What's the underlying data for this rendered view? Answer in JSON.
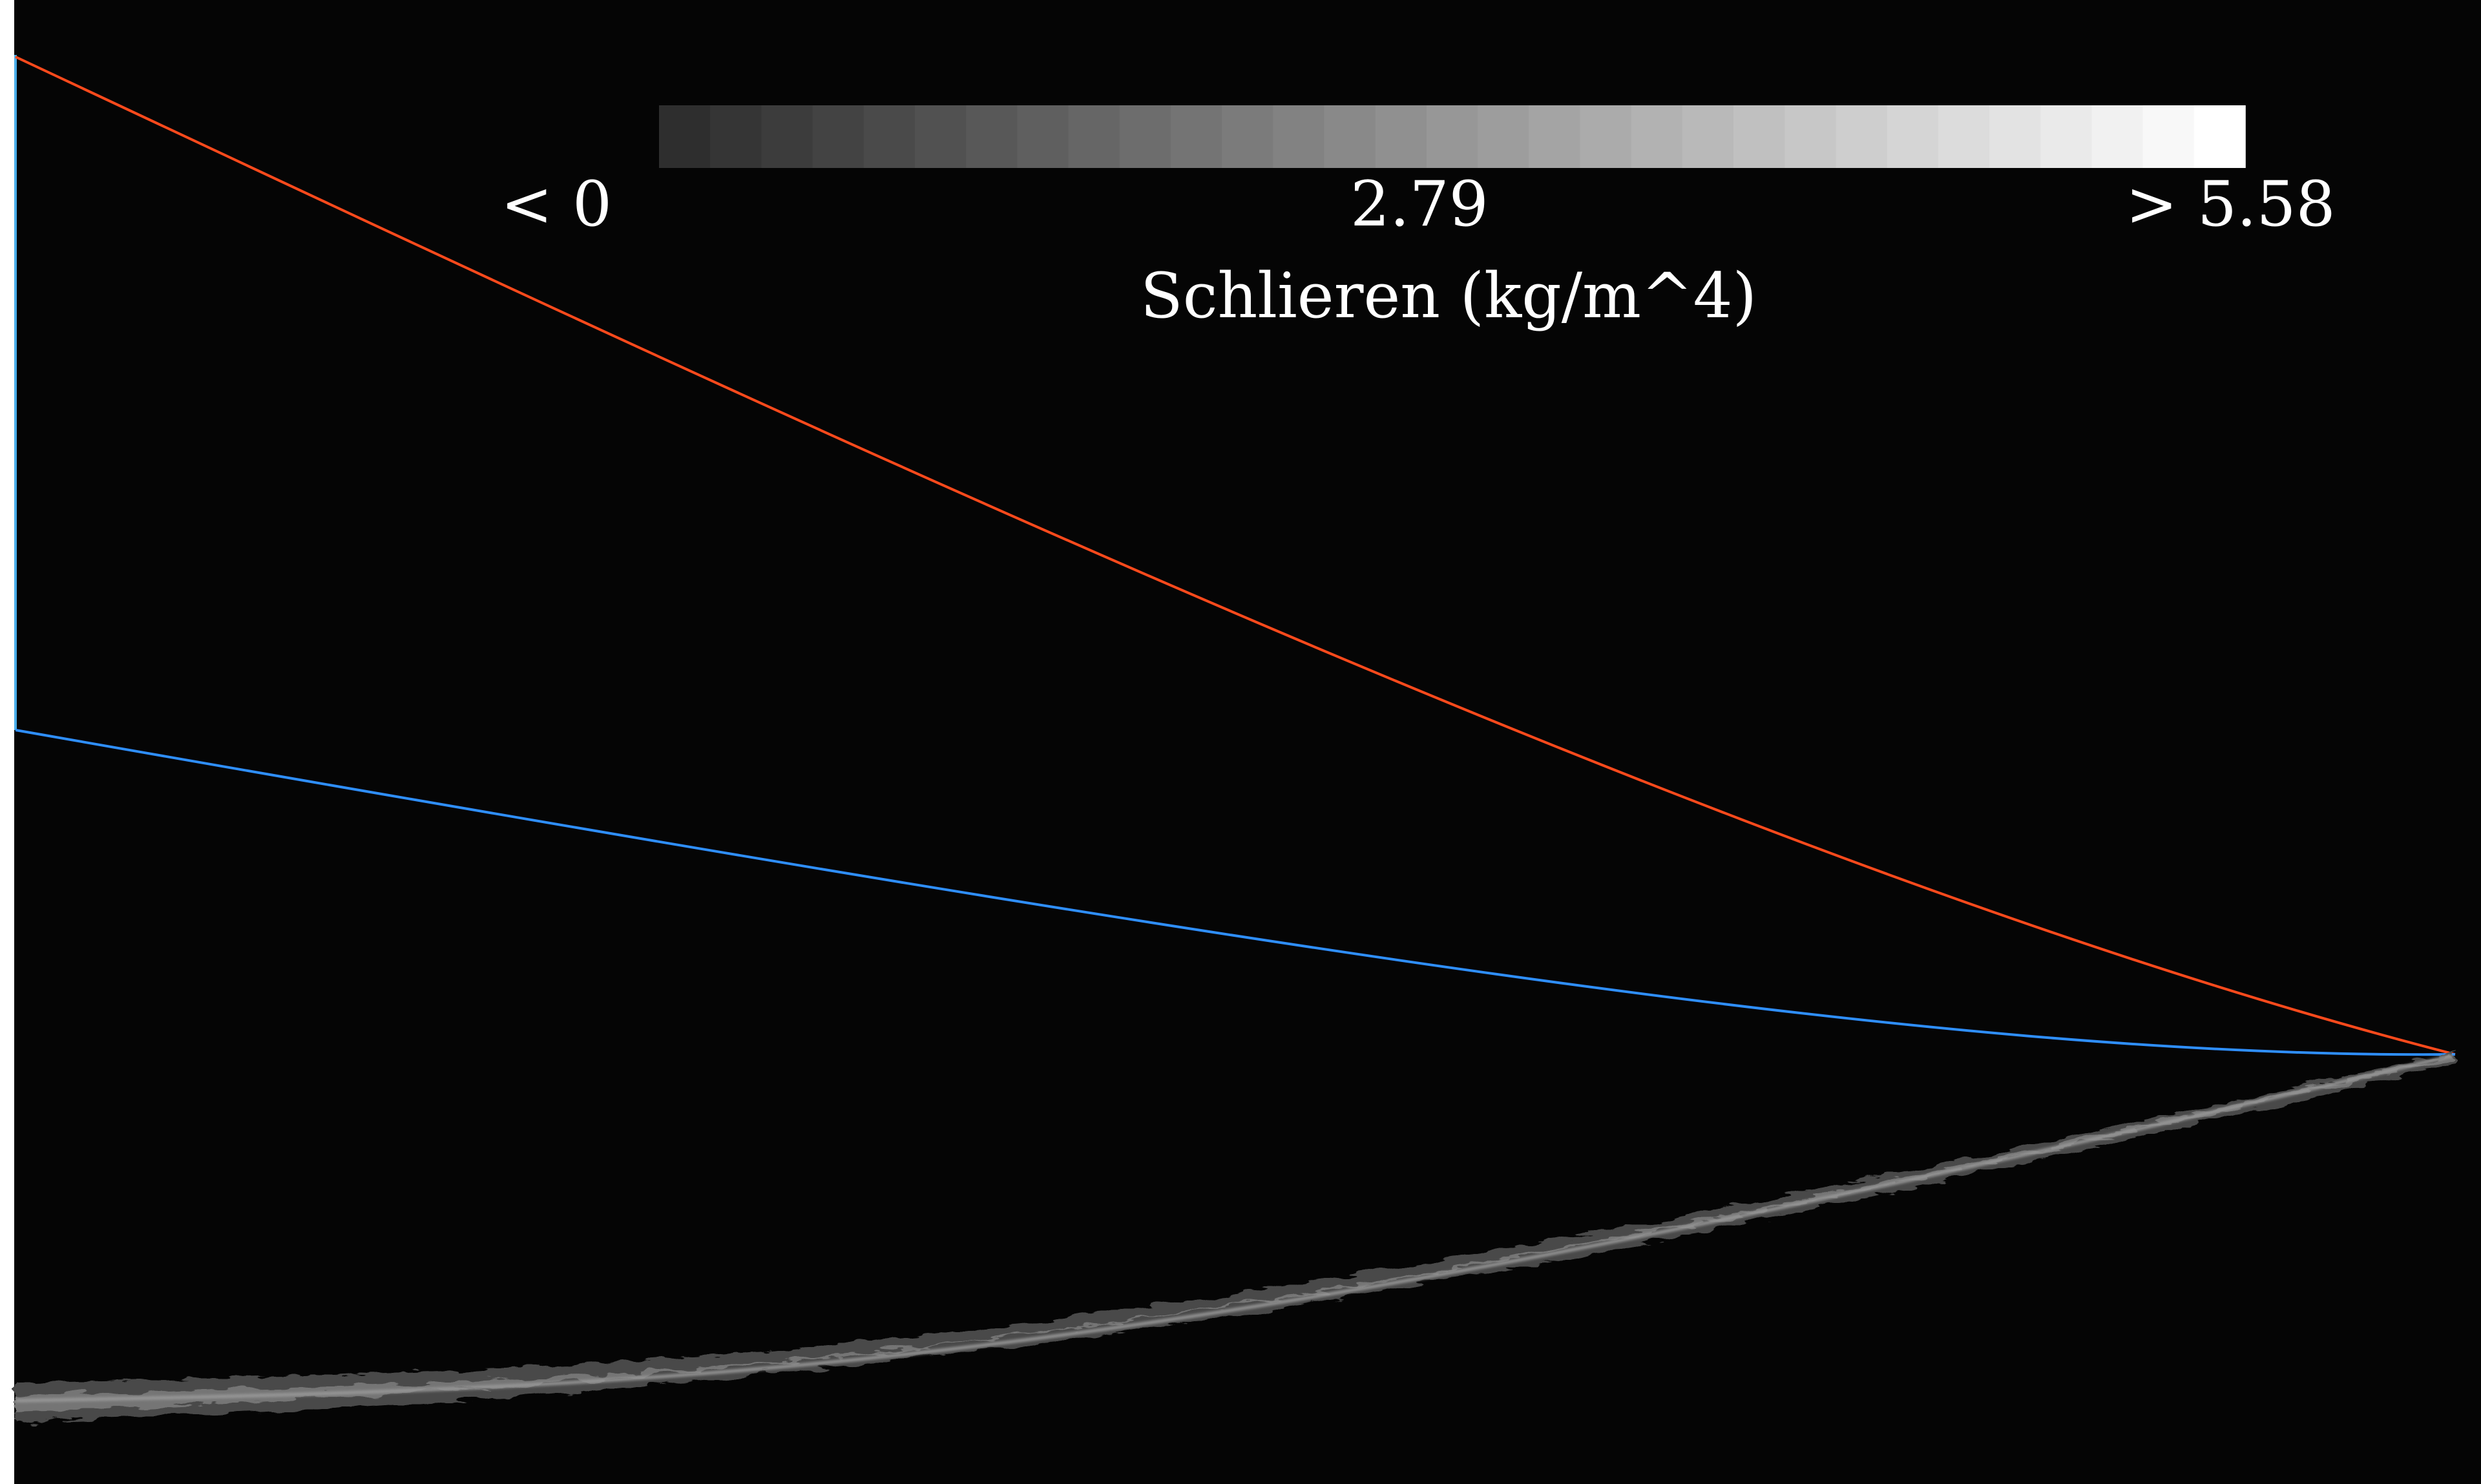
{
  "colors": {
    "background": "#050505",
    "upper_line": "#ff4a1c",
    "lower_line": "#2f8fff",
    "left_edge": "#4aaeea",
    "jet_dark": "#4a4a4a",
    "jet_light": "#9a9a9a"
  },
  "colorbar": {
    "min_label": "< 0",
    "mid_label": "2.79",
    "max_label": "> 5.58",
    "title": "Schlieren (kg/m^4)",
    "gradient": [
      "#2e2e2e",
      "#ffffff"
    ],
    "segments": 31
  }
}
